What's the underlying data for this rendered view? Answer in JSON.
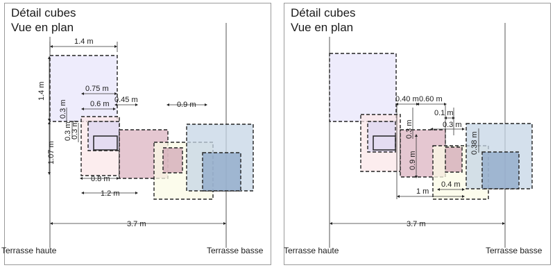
{
  "colors": {
    "lavender": "#e8e6fb",
    "lavender_dark": "#dcd6f2",
    "pink_light": "#fbe7e8",
    "rose": "#dcb4c2",
    "rose_mid": "#d2a7b6",
    "cream": "#fbfbe6",
    "mint": "#dfe8df",
    "steel": "#c6d6e6",
    "steel_dark": "#8ea8c8",
    "line": "#222222",
    "frame": "#9a9a9a"
  },
  "left_panel": {
    "title_line1": "Détail cubes",
    "title_line2": "Vue en plan",
    "dimensions": {
      "top_width": "1.4 m",
      "side_height": "1.4 m",
      "w_075": "0.75 m",
      "w_06": "0.6 m",
      "w_045": "0.45 m",
      "w_09": "0.9 m",
      "v_03a": "0.3 m",
      "v_03b": "0.3 m",
      "v_03c": "0.3 m",
      "v_107": "1.07 m",
      "w_08": "0.8 m",
      "w_12": "1.2 m",
      "total": "3.7 m"
    }
  },
  "right_panel": {
    "title_line1": "Détail cubes",
    "title_line2": "Vue en plan",
    "dimensions": {
      "w_040": "0.40 m",
      "w_060": "0.60 m",
      "w_01": "0.1 m",
      "w_03": "0.3 m",
      "v_03": "0.3 m",
      "v_09": "0.9 m",
      "v_038": "0.38 m",
      "w_04": "0.4 m",
      "w_1": "1 m",
      "total": "3.7 m"
    }
  },
  "labels": {
    "terrasse_haute": "Terrasse haute",
    "terrasse_basse": "Terrasse basse"
  }
}
